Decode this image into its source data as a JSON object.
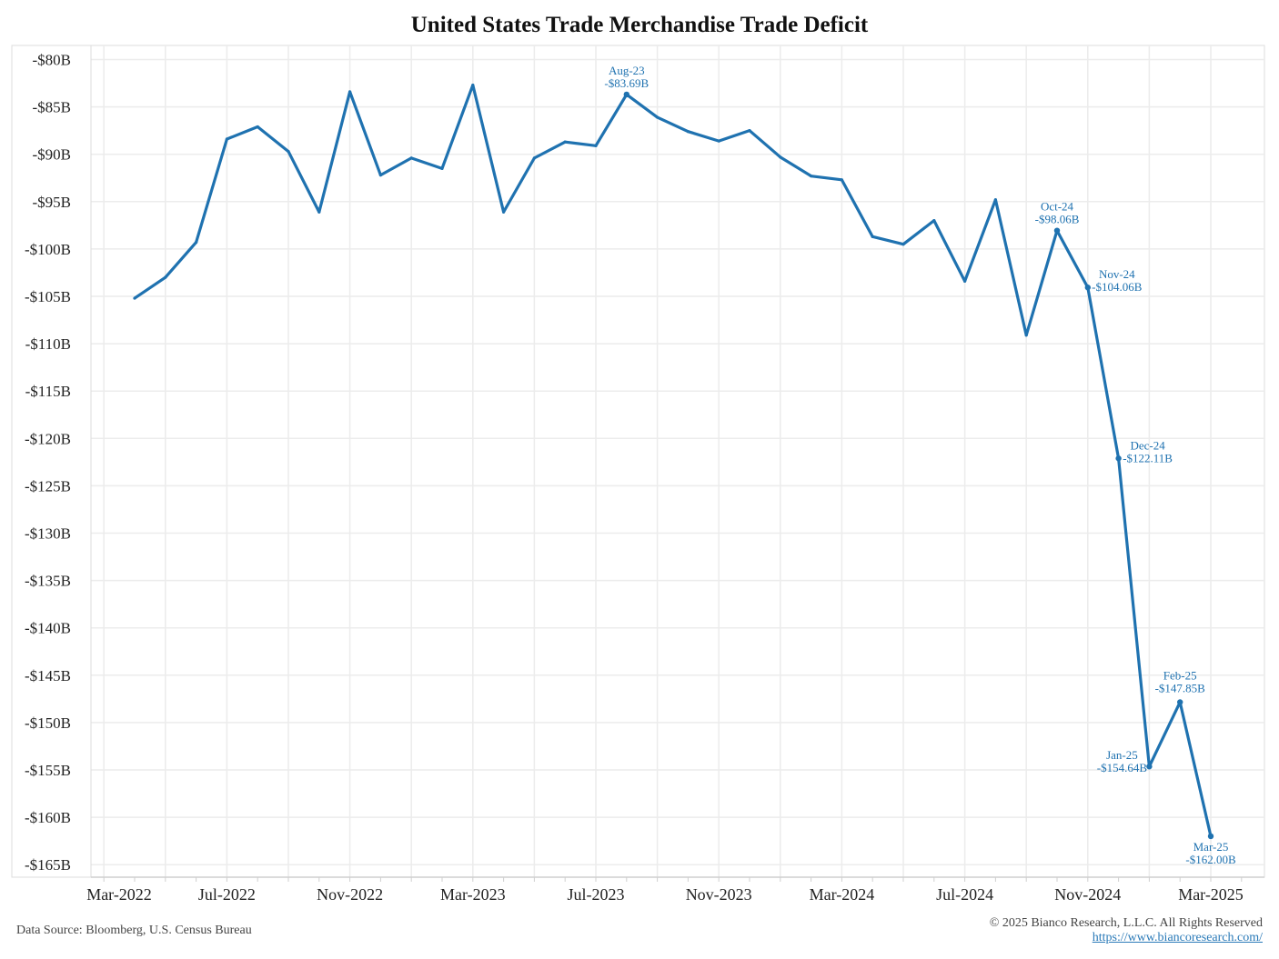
{
  "chart_data": {
    "type": "line",
    "title": "United States Trade Merchandise Trade Deficit",
    "xlabel": "",
    "ylabel": "",
    "x": [
      "Apr-2022",
      "May-2022",
      "Jun-2022",
      "Jul-2022",
      "Aug-2022",
      "Sep-2022",
      "Oct-2022",
      "Nov-2022",
      "Dec-2022",
      "Jan-2023",
      "Feb-2023",
      "Mar-2023",
      "Apr-2023",
      "May-2023",
      "Jun-2023",
      "Jul-2023",
      "Aug-2023",
      "Sep-2023",
      "Oct-2023",
      "Nov-2023",
      "Dec-2023",
      "Jan-2024",
      "Feb-2024",
      "Mar-2024",
      "Apr-2024",
      "May-2024",
      "Jun-2024",
      "Jul-2024",
      "Aug-2024",
      "Sep-2024",
      "Oct-2024",
      "Nov-2024",
      "Dec-2024",
      "Jan-2025",
      "Feb-2025",
      "Mar-2025"
    ],
    "series": [
      {
        "values": [
          -105.2,
          -103.0,
          -99.3,
          -88.4,
          -87.1,
          -89.7,
          -96.1,
          -83.4,
          -92.2,
          -90.4,
          -91.5,
          -82.7,
          -96.1,
          -90.4,
          -88.7,
          -89.1,
          -83.69,
          -86.1,
          -87.6,
          -88.6,
          -87.5,
          -90.3,
          -92.3,
          -92.7,
          -98.7,
          -99.5,
          -97.0,
          -103.4,
          -94.8,
          -109.1,
          -98.06,
          -104.06,
          -122.11,
          -154.64,
          -147.85,
          -162.0
        ],
        "color": "#1f72b0"
      }
    ],
    "ylim": [
      -166.5,
      -78.5
    ],
    "yticks": [
      -80,
      -85,
      -90,
      -95,
      -100,
      -105,
      -110,
      -115,
      -120,
      -125,
      -130,
      -135,
      -140,
      -145,
      -150,
      -155,
      -160,
      -165
    ],
    "ytick_labels": [
      "-$80B",
      "-$85B",
      "-$90B",
      "-$95B",
      "-$100B",
      "-$105B",
      "-$110B",
      "-$115B",
      "-$120B",
      "-$125B",
      "-$130B",
      "-$135B",
      "-$140B",
      "-$145B",
      "-$150B",
      "-$155B",
      "-$160B",
      "-$165B"
    ],
    "xtick_labels": [
      "Mar-2022",
      "Jul-2022",
      "Nov-2022",
      "Mar-2023",
      "Jul-2023",
      "Nov-2023",
      "Mar-2024",
      "Jul-2024",
      "Nov-2024",
      "Mar-2025"
    ],
    "grid": true,
    "annotations": [
      {
        "index": 16,
        "label": "Aug-23",
        "value": "-$83.69B",
        "pos": "above"
      },
      {
        "index": 30,
        "label": "Oct-24",
        "value": "-$98.06B",
        "pos": "above"
      },
      {
        "index": 31,
        "label": "Nov-24",
        "value": "-$104.06B",
        "pos": "right"
      },
      {
        "index": 32,
        "label": "Dec-24",
        "value": "-$122.11B",
        "pos": "right"
      },
      {
        "index": 33,
        "label": "Jan-25",
        "value": "-$154.64B",
        "pos": "left"
      },
      {
        "index": 34,
        "label": "Feb-25",
        "value": "-$147.85B",
        "pos": "above"
      },
      {
        "index": 35,
        "label": "Mar-25",
        "value": "-$162.00B",
        "pos": "below"
      }
    ]
  },
  "footer": {
    "source": "Data Source: Bloomberg, U.S. Census Bureau",
    "copyright": "© 2025 Bianco Research, L.L.C. All Rights Reserved",
    "url": "https://www.biancoresearch.com/"
  }
}
